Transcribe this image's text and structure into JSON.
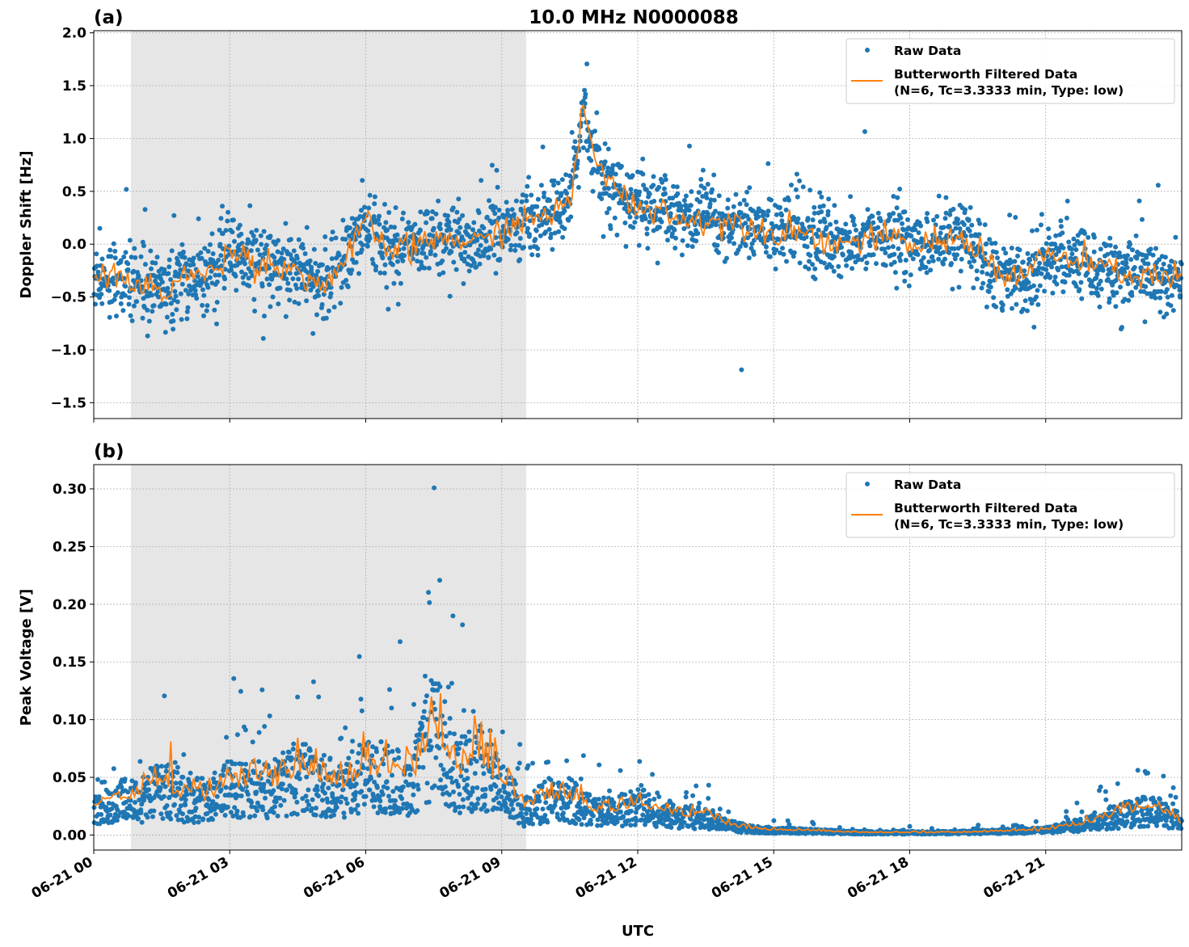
{
  "title": "10.0 MHz N0000088",
  "xlabel": "UTC",
  "x_tick_labels": [
    "06-21 00",
    "06-21 03",
    "06-21 06",
    "06-21 09",
    "06-21 12",
    "06-21 15",
    "06-21 18",
    "06-21 21"
  ],
  "colors": {
    "raw": "#1f77b4",
    "filtered": "#ff7f0e",
    "shade": "#e6e6e6"
  },
  "legend": {
    "raw": "Raw Data",
    "filtered_line1": "Butterworth Filtered Data",
    "filtered_line2": "(N=6, Tc=3.3333 min, Type: low)",
    "placement": "top-right"
  },
  "chart_data": [
    {
      "type": "scatter+line",
      "panel_label": "(a)",
      "ylabel": "Doppler Shift [Hz]",
      "xlim_hours": [
        0,
        24
      ],
      "ylim": [
        -1.65,
        2.02
      ],
      "yticks": [
        -1.5,
        -1.0,
        -0.5,
        0.0,
        0.5,
        1.0,
        1.5,
        2.0
      ],
      "ytick_labels": [
        "−1.5",
        "−1.0",
        "−0.5",
        "0.0",
        "0.5",
        "1.0",
        "1.5",
        "2.0"
      ],
      "grid": true,
      "shaded_hours": [
        0.82,
        9.54
      ],
      "raw_spread": 0.28,
      "filtered": {
        "x_hours": [
          0,
          0.5,
          1,
          1.5,
          2,
          2.5,
          3,
          3.5,
          4,
          4.5,
          5,
          5.5,
          6,
          6.5,
          7,
          7.5,
          8,
          8.5,
          9,
          9.5,
          10,
          10.5,
          10.8,
          11,
          11.5,
          12,
          12.5,
          13,
          13.5,
          14,
          14.5,
          15,
          15.5,
          16,
          16.5,
          17,
          17.5,
          18,
          18.5,
          19,
          19.5,
          20,
          20.5,
          21,
          21.5,
          22,
          22.5,
          23,
          23.5,
          24
        ],
        "values": [
          -0.3,
          -0.3,
          -0.4,
          -0.45,
          -0.3,
          -0.3,
          -0.05,
          -0.15,
          -0.2,
          -0.25,
          -0.4,
          -0.2,
          0.2,
          -0.05,
          -0.05,
          0.05,
          0.05,
          0.0,
          0.15,
          0.2,
          0.3,
          0.35,
          1.3,
          0.9,
          0.5,
          0.35,
          0.35,
          0.2,
          0.25,
          0.2,
          0.2,
          0.1,
          0.15,
          0.05,
          0.0,
          0.05,
          0.05,
          0.0,
          0.0,
          0.05,
          0.0,
          -0.3,
          -0.3,
          -0.1,
          -0.15,
          -0.2,
          -0.25,
          -0.3,
          -0.3,
          -0.35
        ]
      }
    },
    {
      "type": "scatter+line",
      "panel_label": "(b)",
      "ylabel": "Peak Voltage [V]",
      "xlim_hours": [
        0,
        24
      ],
      "ylim": [
        -0.013,
        0.321
      ],
      "yticks": [
        0.0,
        0.05,
        0.1,
        0.15,
        0.2,
        0.25,
        0.3
      ],
      "ytick_labels": [
        "0.00",
        "0.05",
        "0.10",
        "0.15",
        "0.20",
        "0.25",
        "0.30"
      ],
      "grid": true,
      "shaded_hours": [
        0.82,
        9.54
      ],
      "filtered": {
        "x_hours": [
          0,
          0.5,
          1,
          1.5,
          2,
          2.5,
          3,
          3.5,
          4,
          4.5,
          5,
          5.5,
          6,
          6.5,
          7,
          7.5,
          8,
          8.5,
          9,
          9.5,
          10,
          10.5,
          11,
          11.5,
          12,
          12.5,
          13,
          13.5,
          14,
          14.5,
          15,
          16,
          17,
          18,
          19,
          20,
          21,
          22,
          22.5,
          23,
          23.5,
          24
        ],
        "values": [
          0.02,
          0.03,
          0.03,
          0.04,
          0.03,
          0.03,
          0.04,
          0.04,
          0.04,
          0.05,
          0.045,
          0.04,
          0.05,
          0.05,
          0.04,
          0.09,
          0.05,
          0.06,
          0.04,
          0.02,
          0.03,
          0.03,
          0.02,
          0.02,
          0.025,
          0.02,
          0.015,
          0.015,
          0.008,
          0.005,
          0.004,
          0.003,
          0.002,
          0.002,
          0.002,
          0.003,
          0.004,
          0.01,
          0.015,
          0.02,
          0.02,
          0.01
        ]
      }
    }
  ]
}
